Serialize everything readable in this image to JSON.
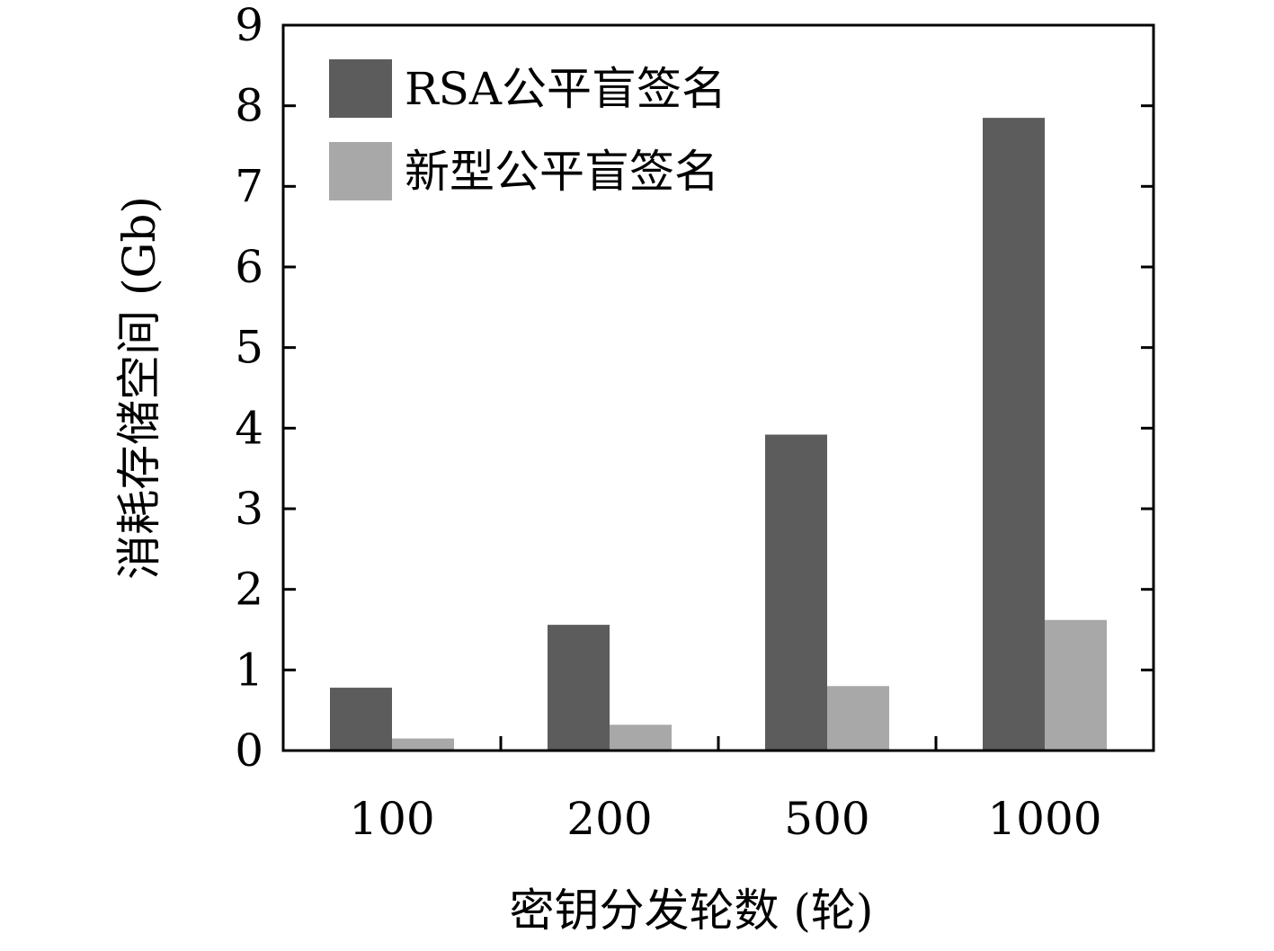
{
  "chart_data": {
    "type": "bar",
    "categories": [
      "100",
      "200",
      "500",
      "1000"
    ],
    "series": [
      {
        "name": "RSA公平盲签名",
        "values": [
          0.78,
          1.56,
          3.92,
          7.85
        ],
        "color": "#5c5c5c"
      },
      {
        "name": "新型公平盲签名",
        "values": [
          0.15,
          0.32,
          0.8,
          1.62
        ],
        "color": "#a8a8a8"
      }
    ],
    "xlabel": "密钥分发轮数 (轮)",
    "ylabel": "消耗存储空间 (Gb)",
    "ylim": [
      0,
      9
    ],
    "yticks": [
      "0",
      "1",
      "2",
      "3",
      "4",
      "5",
      "6",
      "7",
      "8",
      "9"
    ],
    "grid": false,
    "legend_position": "top-left"
  }
}
